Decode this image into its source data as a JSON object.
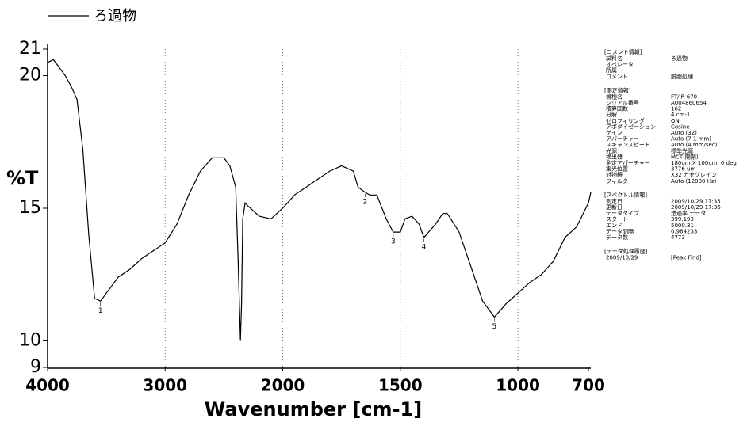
{
  "chart_data": {
    "type": "line",
    "x_label": "Wavenumber [cm-1]",
    "y_label": "%T",
    "series": [
      {
        "name": "ろ過物",
        "color": "#000000",
        "x": [
          4000,
          3950,
          3900,
          3850,
          3800,
          3750,
          3700,
          3650,
          3600,
          3550,
          3500,
          3400,
          3300,
          3200,
          3100,
          3000,
          2900,
          2800,
          2700,
          2600,
          2500,
          2450,
          2400,
          2380,
          2360,
          2350,
          2340,
          2320,
          2300,
          2200,
          2100,
          2000,
          1950,
          1900,
          1850,
          1800,
          1750,
          1700,
          1680,
          1650,
          1630,
          1600,
          1560,
          1530,
          1500,
          1480,
          1450,
          1420,
          1400,
          1380,
          1350,
          1320,
          1300,
          1250,
          1200,
          1150,
          1100,
          1080,
          1050,
          1000,
          950,
          900,
          850,
          800,
          750,
          700,
          690
        ],
        "values": [
          20.5,
          20.6,
          20.3,
          20.0,
          19.6,
          19.1,
          17.2,
          14.0,
          11.6,
          11.5,
          11.8,
          12.4,
          12.7,
          13.1,
          13.4,
          13.7,
          14.4,
          15.5,
          16.4,
          16.9,
          16.9,
          16.6,
          15.8,
          13.1,
          10.0,
          11.4,
          14.6,
          15.2,
          15.1,
          14.7,
          14.6,
          15.0,
          15.5,
          15.8,
          16.1,
          16.4,
          16.6,
          16.4,
          15.8,
          15.6,
          15.5,
          15.5,
          14.6,
          14.1,
          14.1,
          14.6,
          14.7,
          14.4,
          13.9,
          14.1,
          14.4,
          14.8,
          14.8,
          14.1,
          12.8,
          11.5,
          10.9,
          11.1,
          11.4,
          11.8,
          12.2,
          12.5,
          13.0,
          13.9,
          14.3,
          15.2,
          15.6
        ]
      }
    ],
    "peaks": [
      {
        "label": "1",
        "x": 3550,
        "y": 11.5
      },
      {
        "label": "2",
        "x": 1650,
        "y": 15.6
      },
      {
        "label": "3",
        "x": 1530,
        "y": 14.1
      },
      {
        "label": "4",
        "x": 1400,
        "y": 13.9
      },
      {
        "label": "5",
        "x": 1100,
        "y": 10.9
      }
    ],
    "xlim": [
      4000,
      690
    ],
    "x_scale_change": 2000,
    "xticks": [
      4000,
      3000,
      2000,
      1500,
      1000,
      700
    ],
    "ylim": [
      9,
      21
    ],
    "yticks": [
      9,
      10,
      15,
      20,
      21
    ],
    "grid": true
  },
  "info_panel": {
    "sections": [
      {
        "title": "[コメント情報]",
        "rows": [
          {
            "label": "試料名",
            "value": "ろ過物"
          },
          {
            "label": "オペレータ"
          },
          {
            "label": "所属"
          },
          {
            "label": "コメント",
            "value": "脱脂処理"
          }
        ]
      },
      {
        "title": "[測定情報]",
        "rows": [
          {
            "label": "機種名",
            "value": "FT/IR-670"
          },
          {
            "label": "シリアル番号",
            "value": "A004860654"
          },
          {
            "label": "積算回数",
            "value": "162"
          },
          {
            "label": "分解",
            "value": "4 cm-1"
          },
          {
            "label": "ゼロフィリング",
            "value": "ON"
          },
          {
            "label": "アポダイゼーション",
            "value": "Cosine"
          },
          {
            "label": "ゲイン",
            "value": "Auto (32)"
          },
          {
            "label": "アパーチャー",
            "value": "Auto (7.1 mm)"
          },
          {
            "label": "スキャンスピード",
            "value": "Auto (4 mm/sec)"
          },
          {
            "label": "光源",
            "value": "標準光源"
          },
          {
            "label": "検出器",
            "value": "MCT(開閉)"
          },
          {
            "label": "測定アパーチャー",
            "value": "180um X 100um, 0 deg"
          },
          {
            "label": "集光位置",
            "value": "3776 um"
          },
          {
            "label": "対物鏡",
            "value": "X32 カセグレイン"
          },
          {
            "label": "フィルタ",
            "value": "Auto (12000 Hz)"
          }
        ]
      },
      {
        "title": "[スペクトル情報]",
        "rows": [
          {
            "label": "測定日",
            "value": "2009/10/29 17:35"
          },
          {
            "label": "更新日",
            "value": "2009/10/29 17:36"
          },
          {
            "label": "データタイプ",
            "value": "透過率 データ"
          },
          {
            "label": "スタート",
            "value": "399.193"
          },
          {
            "label": "エンド",
            "value": "5000.31"
          },
          {
            "label": "データ間隔",
            "value": "0.964233"
          },
          {
            "label": "データ数",
            "value": "4773"
          }
        ]
      },
      {
        "title": "[データ処理履歴]",
        "rows": [
          {
            "label": "2009/10/29",
            "value": "[Peak Find]"
          }
        ]
      }
    ]
  }
}
